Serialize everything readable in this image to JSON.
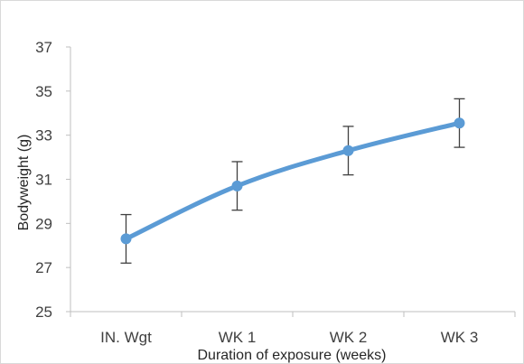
{
  "chart_data": {
    "type": "line",
    "categories": [
      "IN. Wgt",
      "WK 1",
      "WK 2",
      "WK 3"
    ],
    "series": [
      {
        "values": [
          28.3,
          30.7,
          32.3,
          33.55
        ],
        "error": [
          1.1,
          1.1,
          1.1,
          1.1
        ]
      }
    ],
    "xlabel": "Duration of exposure (weeks)",
    "ylabel": "Bodyweight (g)",
    "ylim": [
      25,
      37
    ],
    "yticks": [
      25,
      27,
      29,
      31,
      33,
      35,
      37
    ],
    "grid": false,
    "colors": {
      "line": "#5b9bd5",
      "error_bar": "#404040",
      "axis": "#bfbfbf",
      "text": "#404040"
    }
  }
}
